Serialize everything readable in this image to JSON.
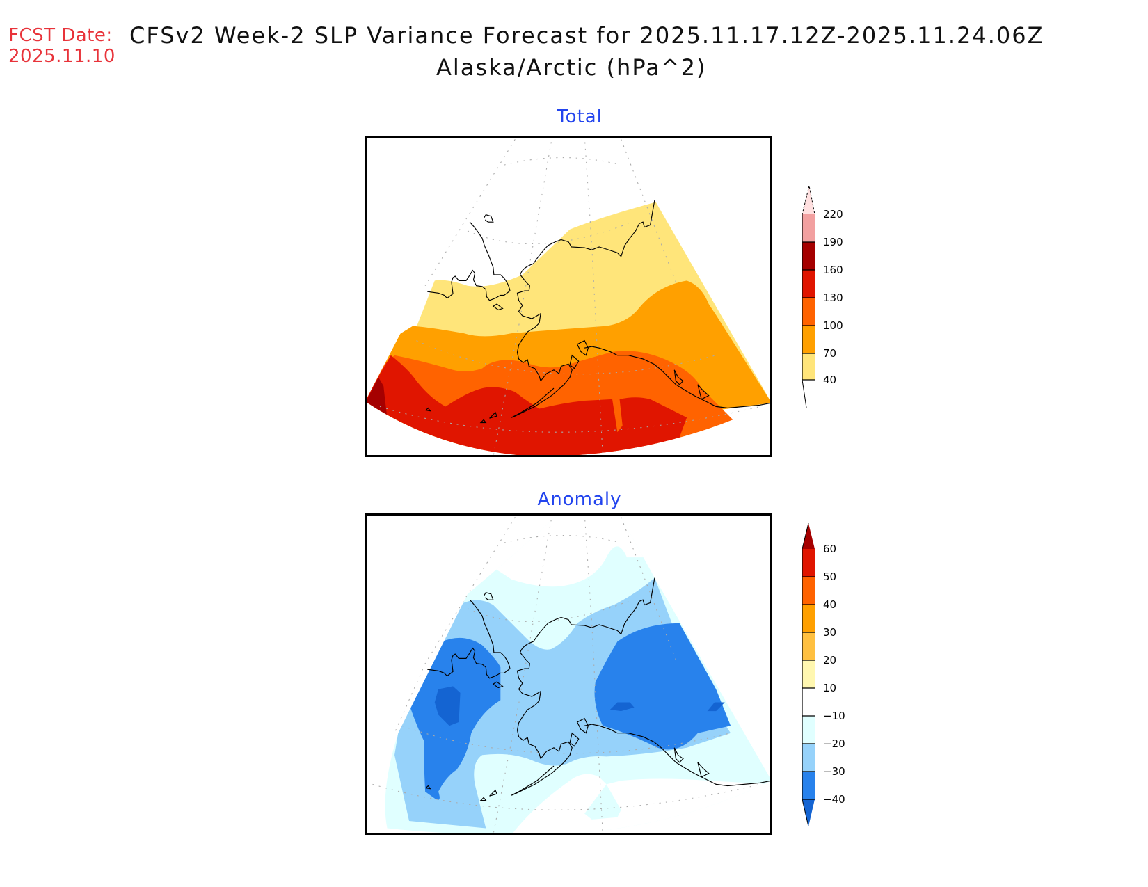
{
  "header": {
    "fcst_label": "FCST Date:",
    "fcst_date": "2025.11.10",
    "title_line1": "CFSv2 Week-2 SLP Variance Forecast for 2025.11.17.12Z-2025.11.24.06Z",
    "title_line2": "Alaska/Arctic (hPa^2)"
  },
  "chart_data": [
    {
      "type": "heatmap",
      "title": "Total",
      "units": "hPa^2",
      "region": "Alaska/Arctic",
      "legend": {
        "position": "right",
        "levels": [
          "40",
          "70",
          "100",
          "130",
          "160",
          "190",
          "220"
        ],
        "colors": [
          "#ffe57a",
          "#ffa000",
          "#ff6300",
          "#e01500",
          "#a50000",
          "#f2a0a0",
          "#ffe0e0"
        ],
        "extends": "both"
      },
      "field_summary": "Variance increases southward: 40-70 over northern Alaska and Arctic coast, 70-100 over interior/south, 100-130 over the Bering Sea/Gulf of Alaska, 130-160 over the North Pacific, locally 160-190 in the far southwest."
    },
    {
      "type": "heatmap",
      "title": "Anomaly",
      "units": "hPa^2",
      "region": "Alaska/Arctic",
      "legend": {
        "position": "right",
        "levels": [
          "60",
          "50",
          "40",
          "30",
          "20",
          "10",
          "-10",
          "-20",
          "-30",
          "-40"
        ],
        "colors": [
          "#a50000",
          "#e01500",
          "#ff6300",
          "#ffa000",
          "#ffc040",
          "#fff7b0",
          "#ffffff",
          "#e0ffff",
          "#96d2fa",
          "#2882ec",
          "#1464d2"
        ],
        "extends": "both"
      },
      "field_summary": "Negative anomalies across the domain: -30 to -40 over eastern Siberia/Bering Strait and over the Yukon/northern Canada, locally below -40; -10 to -30 elsewhere; near-normal in the south Pacific."
    }
  ],
  "panels": {
    "total_title": "Total",
    "anomaly_title": "Anomaly"
  },
  "colorbar_total": {
    "labels": [
      "220",
      "190",
      "160",
      "130",
      "100",
      "70",
      "40"
    ]
  },
  "colorbar_anomaly": {
    "labels": [
      "60",
      "50",
      "40",
      "30",
      "20",
      "10",
      "−10",
      "−20",
      "−30",
      "−40"
    ]
  }
}
